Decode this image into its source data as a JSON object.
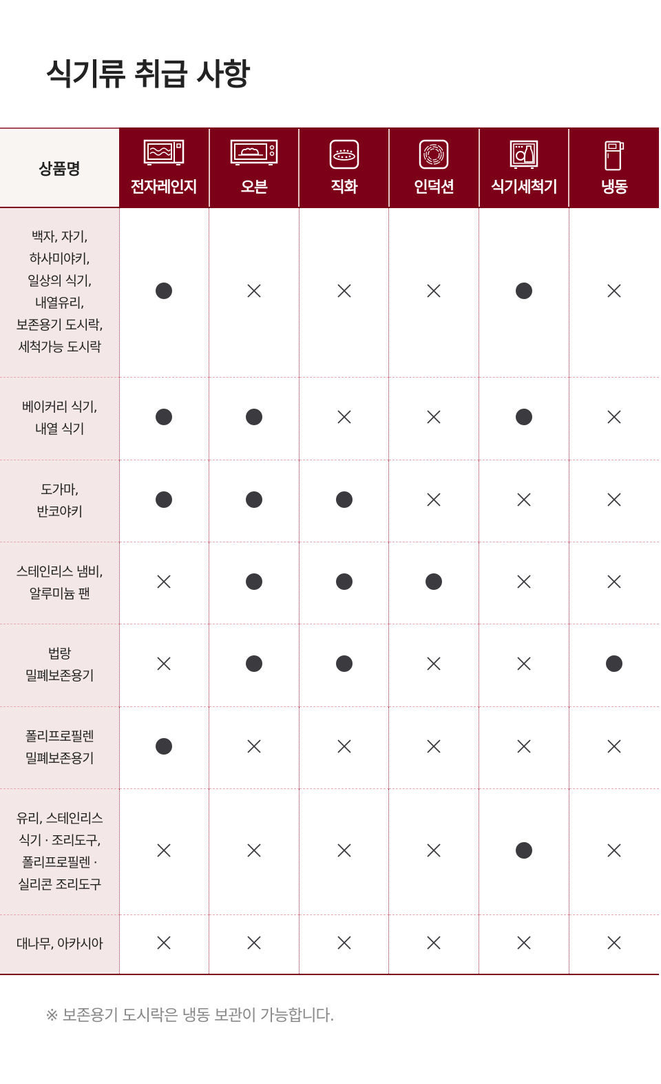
{
  "title": "식기류 취급 사항",
  "table": {
    "name_header": "상품명",
    "columns": [
      {
        "label": "전자레인지",
        "icon": "microwave-icon"
      },
      {
        "label": "오븐",
        "icon": "oven-icon"
      },
      {
        "label": "직화",
        "icon": "gas-burner-icon"
      },
      {
        "label": "인덕션",
        "icon": "induction-icon"
      },
      {
        "label": "식기세척기",
        "icon": "dishwasher-icon"
      },
      {
        "label": "냉동",
        "icon": "refrigerator-icon"
      }
    ],
    "rows": [
      {
        "name": "백자, 자기,\n하사미야키,\n일상의 식기,\n내열유리,\n보존용기 도시락,\n세척가능 도시락",
        "values": [
          true,
          false,
          false,
          false,
          true,
          false
        ]
      },
      {
        "name": "베이커리 식기,\n내열 식기",
        "values": [
          true,
          true,
          false,
          false,
          true,
          false
        ]
      },
      {
        "name": "도가마,\n반코야키",
        "values": [
          true,
          true,
          true,
          false,
          false,
          false
        ]
      },
      {
        "name": "스테인리스 냄비,\n알루미늄 팬",
        "values": [
          false,
          true,
          true,
          true,
          false,
          false
        ]
      },
      {
        "name": "법랑\n밀폐보존용기",
        "values": [
          false,
          true,
          true,
          false,
          false,
          true
        ]
      },
      {
        "name": "폴리프로필렌\n밀폐보존용기",
        "values": [
          true,
          false,
          false,
          false,
          false,
          false
        ]
      },
      {
        "name": "유리, 스테인리스\n식기 · 조리도구,\n폴리프로필렌 ·\n실리콘 조리도구",
        "values": [
          false,
          false,
          false,
          false,
          true,
          false
        ]
      },
      {
        "name": "대나무, 아카시아",
        "values": [
          false,
          false,
          false,
          false,
          false,
          false
        ]
      }
    ],
    "legend": {
      "yes": "filled-circle",
      "no": "x-mark"
    }
  },
  "note": "※ 보존용기 도시락은 냉동 보관이 가능합니다.",
  "colors": {
    "header": "#7d0019",
    "name_column": "#f3e8e7",
    "dot": "#3a3a3f"
  }
}
